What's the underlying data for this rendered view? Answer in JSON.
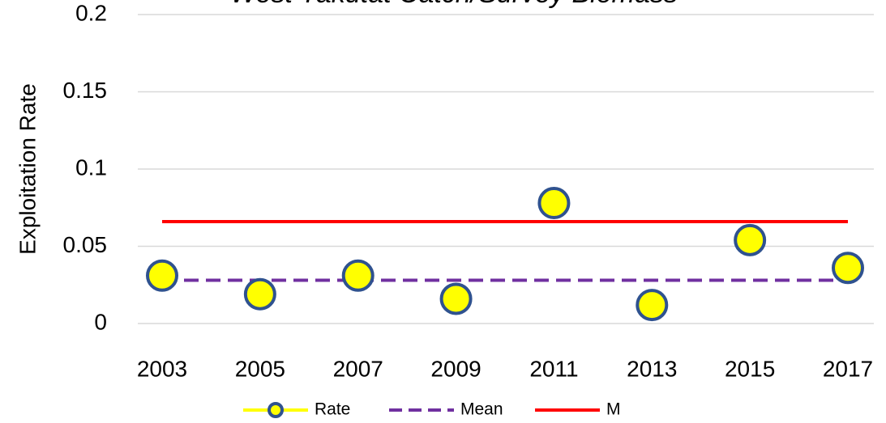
{
  "chart_data": {
    "type": "line",
    "title": "West Yakutat Catch/Survey Biomass",
    "y_label": "Exploitation Rate",
    "categories": [
      "2003",
      "2005",
      "2007",
      "2009",
      "2011",
      "2013",
      "2015",
      "2017"
    ],
    "series": [
      {
        "name": "Rate",
        "color": "#ffff00",
        "edge_color": "#2f528f",
        "style": "markers",
        "values": [
          0.031,
          0.019,
          0.031,
          0.016,
          0.078,
          0.012,
          0.054,
          0.036
        ]
      },
      {
        "name": "Mean",
        "color": "#7030a0",
        "style": "dashed",
        "values": [
          0.028,
          0.028,
          0.028,
          0.028,
          0.028,
          0.028,
          0.028,
          0.028
        ]
      },
      {
        "name": "M",
        "color": "#ff0000",
        "style": "solid",
        "values": [
          0.066,
          0.066,
          0.066,
          0.066,
          0.066,
          0.066,
          0.066,
          0.066
        ]
      }
    ],
    "ylim": [
      0,
      0.2
    ],
    "yticks": [
      0,
      0.05,
      0.1,
      0.15,
      0.2
    ],
    "grid": true,
    "legend": "bottom"
  }
}
